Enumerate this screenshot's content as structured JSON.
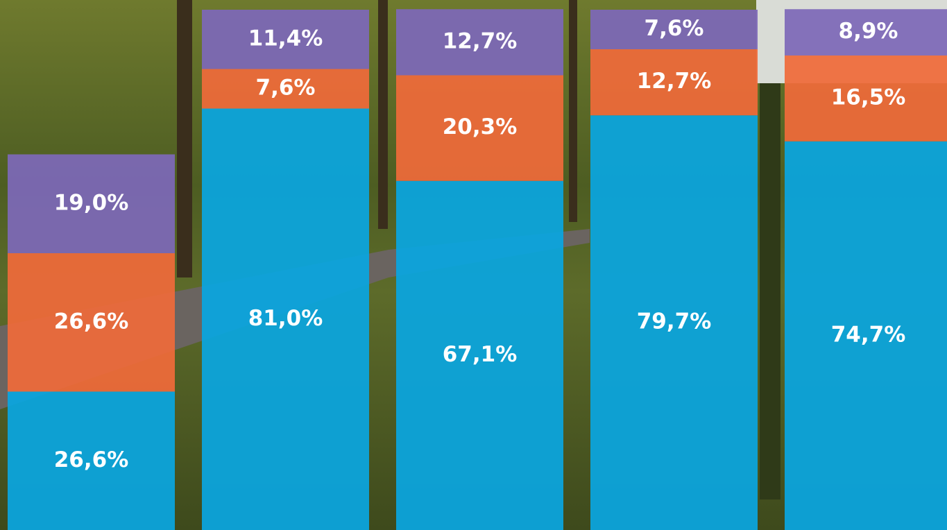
{
  "chart_data": {
    "type": "stacked_bar",
    "categories": [
      null,
      null,
      null,
      null,
      null
    ],
    "ylim": [
      0,
      100
    ],
    "series": [
      {
        "color": "#0aa6e0",
        "values": [
          26.6,
          81.0,
          67.1,
          79.7,
          74.7
        ],
        "value_labels": [
          "26,6%",
          "81,0%",
          "67,1%",
          "79,7%",
          "74,7%"
        ]
      },
      {
        "color": "#ef6b3a",
        "values": [
          26.6,
          7.6,
          20.3,
          12.7,
          16.5
        ],
        "value_labels": [
          "26,6%",
          "7,6%",
          "20,3%",
          "12,7%",
          "16,5%"
        ]
      },
      {
        "color": "#7d68b8",
        "values": [
          19.0,
          11.4,
          12.7,
          7.6,
          8.9
        ],
        "value_labels": [
          "19,0%",
          "11,4%",
          "12,7%",
          "7,6%",
          "8,9%"
        ]
      }
    ]
  }
}
